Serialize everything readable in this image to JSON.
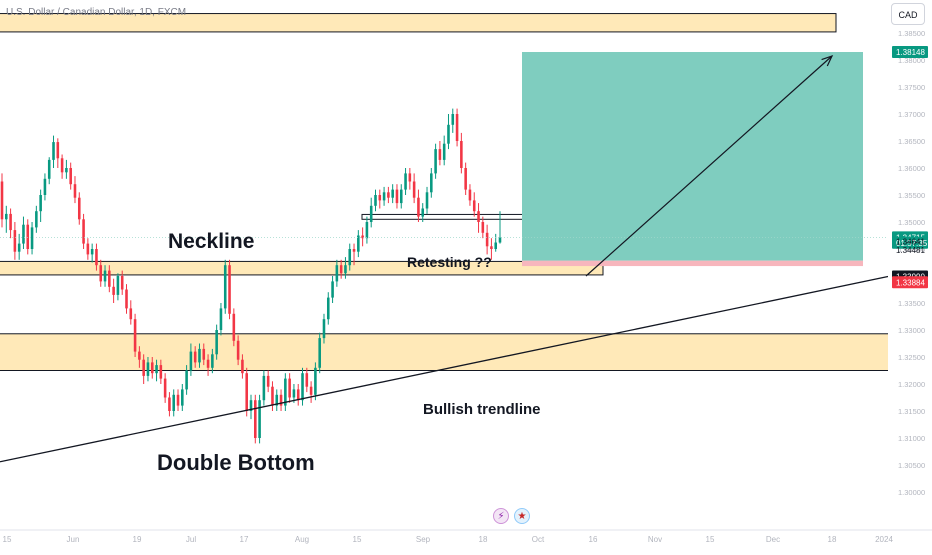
{
  "header": {
    "symbol_title": "U.S. Dollar / Canadian Dollar, 1D, FXCM",
    "currency_button": "CAD"
  },
  "annotations": {
    "neckline": "Neckline",
    "retesting": "Retesting ??",
    "bullish_trendline": "Bullish trendline",
    "double_bottom": "Double Bottom"
  },
  "icons": {
    "lightning": "lightning-icon",
    "flag": "us-flag-icon"
  },
  "colors": {
    "bull": "#089981",
    "bear": "#f23645",
    "zone_fill": "#ffe9b8",
    "target_zone": "#7fcdbf",
    "stop_zone": "#f7b6bd",
    "price_green": "#089981",
    "price_dark": "#131722",
    "price_red": "#f23645"
  },
  "chart_data": {
    "type": "candlestick",
    "title": "U.S. Dollar / Canadian Dollar, 1D, FXCM",
    "y_ticks": [
      1.385,
      1.38,
      1.375,
      1.37,
      1.365,
      1.36,
      1.355,
      1.35,
      1.345,
      1.34,
      1.335,
      1.33,
      1.325,
      1.32,
      1.315,
      1.31,
      1.305,
      1.3
    ],
    "y_tick_labels": [
      "1.38500",
      "1.38000",
      "1.37500",
      "1.37000",
      "1.36500",
      "1.36000",
      "1.35500",
      "1.35000",
      "1.34500",
      "1.34000",
      "1.33500",
      "1.33000",
      "1.32500",
      "1.32000",
      "1.31500",
      "1.31000",
      "1.30500",
      "1.30000"
    ],
    "x_tick_labels": [
      "15",
      "Jun",
      "19",
      "Jul",
      "17",
      "Aug",
      "15",
      "Sep",
      "18",
      "Oct",
      "16",
      "Nov",
      "15",
      "Dec",
      "18",
      "2024"
    ],
    "price_labels": [
      {
        "text": "1.38148",
        "value": 1.38148,
        "style": "green"
      },
      {
        "text": "1.34715",
        "value": 1.34715,
        "style": "green"
      },
      {
        "text": "01:57:35",
        "value": 1.34615,
        "style": "green"
      },
      {
        "text": "1.34641",
        "value": 1.34641,
        "style": "plain"
      },
      {
        "text": "1.34481",
        "value": 1.34481,
        "style": "plain"
      },
      {
        "text": "1.33990",
        "value": 1.3399,
        "style": "dark"
      },
      {
        "text": "1.33884",
        "value": 1.33884,
        "style": "red"
      }
    ],
    "zones": [
      {
        "name": "top-resistance-zone",
        "y": [
          1.3852,
          1.3886
        ]
      },
      {
        "name": "neckline-zone",
        "y": [
          1.3402,
          1.3427
        ]
      },
      {
        "name": "demand-zone",
        "y": [
          1.3225,
          1.3293
        ]
      },
      {
        "name": "retest-box",
        "y": [
          1.3505,
          1.3514
        ]
      }
    ],
    "position": {
      "entry": 1.34284,
      "target": 1.38148,
      "stop": 1.34184
    },
    "trendline": {
      "from": 1.3056,
      "to": 1.3399
    },
    "candles": [
      [
        1.3575,
        1.3505,
        1.359,
        1.349
      ],
      [
        1.3505,
        1.3515,
        1.353,
        1.348
      ],
      [
        1.3515,
        1.3485,
        1.3525,
        1.347
      ],
      [
        1.3485,
        1.3445,
        1.35,
        1.343
      ],
      [
        1.3445,
        1.346,
        1.3478,
        1.343
      ],
      [
        1.346,
        1.3495,
        1.351,
        1.345
      ],
      [
        1.3495,
        1.345,
        1.3505,
        1.344
      ],
      [
        1.345,
        1.349,
        1.35,
        1.344
      ],
      [
        1.349,
        1.352,
        1.353,
        1.348
      ],
      [
        1.352,
        1.355,
        1.356,
        1.35
      ],
      [
        1.355,
        1.358,
        1.359,
        1.354
      ],
      [
        1.358,
        1.3615,
        1.362,
        1.357
      ],
      [
        1.3615,
        1.3648,
        1.366,
        1.36
      ],
      [
        1.3648,
        1.3618,
        1.3655,
        1.36
      ],
      [
        1.3618,
        1.3592,
        1.3625,
        1.358
      ],
      [
        1.3592,
        1.36,
        1.3615,
        1.358
      ],
      [
        1.36,
        1.357,
        1.361,
        1.356
      ],
      [
        1.357,
        1.3545,
        1.3585,
        1.3535
      ],
      [
        1.3545,
        1.3505,
        1.3555,
        1.3495
      ],
      [
        1.3505,
        1.346,
        1.3515,
        1.345
      ],
      [
        1.346,
        1.344,
        1.347,
        1.343
      ],
      [
        1.344,
        1.345,
        1.346,
        1.3425
      ],
      [
        1.345,
        1.342,
        1.346,
        1.341
      ],
      [
        1.342,
        1.339,
        1.343,
        1.338
      ],
      [
        1.339,
        1.341,
        1.342,
        1.338
      ],
      [
        1.341,
        1.338,
        1.342,
        1.337
      ],
      [
        1.338,
        1.3365,
        1.3395,
        1.335
      ],
      [
        1.3365,
        1.34,
        1.3405,
        1.3355
      ],
      [
        1.34,
        1.3375,
        1.341,
        1.3365
      ],
      [
        1.3375,
        1.334,
        1.3385,
        1.333
      ],
      [
        1.334,
        1.332,
        1.3355,
        1.331
      ],
      [
        1.332,
        1.326,
        1.333,
        1.325
      ],
      [
        1.326,
        1.3245,
        1.327,
        1.323
      ],
      [
        1.3245,
        1.3215,
        1.3255,
        1.32
      ],
      [
        1.3215,
        1.324,
        1.325,
        1.3205
      ],
      [
        1.324,
        1.322,
        1.325,
        1.321
      ],
      [
        1.322,
        1.3235,
        1.3245,
        1.3205
      ],
      [
        1.3235,
        1.321,
        1.3245,
        1.32
      ],
      [
        1.321,
        1.3175,
        1.322,
        1.3165
      ],
      [
        1.3175,
        1.315,
        1.3185,
        1.314
      ],
      [
        1.315,
        1.318,
        1.319,
        1.314
      ],
      [
        1.318,
        1.316,
        1.319,
        1.315
      ],
      [
        1.316,
        1.319,
        1.32,
        1.315
      ],
      [
        1.319,
        1.3225,
        1.3235,
        1.318
      ],
      [
        1.3225,
        1.326,
        1.3275,
        1.3215
      ],
      [
        1.326,
        1.324,
        1.327,
        1.323
      ],
      [
        1.324,
        1.3265,
        1.3275,
        1.323
      ],
      [
        1.3265,
        1.3245,
        1.3275,
        1.3235
      ],
      [
        1.3245,
        1.323,
        1.3255,
        1.3215
      ],
      [
        1.323,
        1.3255,
        1.3265,
        1.322
      ],
      [
        1.3255,
        1.33,
        1.331,
        1.3245
      ],
      [
        1.33,
        1.334,
        1.335,
        1.329
      ],
      [
        1.334,
        1.342,
        1.343,
        1.333
      ],
      [
        1.342,
        1.333,
        1.343,
        1.332
      ],
      [
        1.333,
        1.328,
        1.334,
        1.327
      ],
      [
        1.328,
        1.3245,
        1.329,
        1.3235
      ],
      [
        1.3245,
        1.322,
        1.3255,
        1.321
      ],
      [
        1.322,
        1.315,
        1.323,
        1.314
      ],
      [
        1.315,
        1.317,
        1.318,
        1.3135
      ],
      [
        1.317,
        1.31,
        1.318,
        1.309
      ],
      [
        1.31,
        1.317,
        1.318,
        1.309
      ],
      [
        1.317,
        1.3215,
        1.3225,
        1.316
      ],
      [
        1.3215,
        1.3195,
        1.3225,
        1.3185
      ],
      [
        1.3195,
        1.316,
        1.3205,
        1.315
      ],
      [
        1.316,
        1.318,
        1.319,
        1.315
      ],
      [
        1.318,
        1.316,
        1.319,
        1.315
      ],
      [
        1.316,
        1.321,
        1.322,
        1.315
      ],
      [
        1.321,
        1.3175,
        1.322,
        1.3165
      ],
      [
        1.3175,
        1.319,
        1.32,
        1.3165
      ],
      [
        1.319,
        1.317,
        1.32,
        1.316
      ],
      [
        1.317,
        1.322,
        1.323,
        1.316
      ],
      [
        1.322,
        1.3195,
        1.323,
        1.3185
      ],
      [
        1.3195,
        1.318,
        1.3205,
        1.3165
      ],
      [
        1.318,
        1.323,
        1.324,
        1.317
      ],
      [
        1.323,
        1.3285,
        1.3295,
        1.322
      ],
      [
        1.3285,
        1.332,
        1.333,
        1.3275
      ],
      [
        1.332,
        1.336,
        1.337,
        1.331
      ],
      [
        1.336,
        1.339,
        1.34,
        1.335
      ],
      [
        1.339,
        1.342,
        1.343,
        1.338
      ],
      [
        1.342,
        1.3405,
        1.343,
        1.3395
      ],
      [
        1.3405,
        1.342,
        1.3435,
        1.3395
      ],
      [
        1.342,
        1.345,
        1.346,
        1.341
      ],
      [
        1.345,
        1.3445,
        1.346,
        1.342
      ],
      [
        1.3445,
        1.3475,
        1.3485,
        1.3435
      ],
      [
        1.3475,
        1.347,
        1.349,
        1.3455
      ],
      [
        1.347,
        1.35,
        1.351,
        1.346
      ],
      [
        1.35,
        1.353,
        1.3545,
        1.349
      ],
      [
        1.353,
        1.355,
        1.356,
        1.352
      ],
      [
        1.355,
        1.354,
        1.356,
        1.3525
      ],
      [
        1.354,
        1.3555,
        1.3565,
        1.353
      ],
      [
        1.3555,
        1.3545,
        1.3565,
        1.3535
      ],
      [
        1.3545,
        1.356,
        1.357,
        1.3535
      ],
      [
        1.356,
        1.3535,
        1.357,
        1.3525
      ],
      [
        1.3535,
        1.356,
        1.357,
        1.3525
      ],
      [
        1.356,
        1.359,
        1.36,
        1.355
      ],
      [
        1.359,
        1.3575,
        1.36,
        1.356
      ],
      [
        1.3575,
        1.3545,
        1.359,
        1.3535
      ],
      [
        1.3545,
        1.351,
        1.356,
        1.35
      ],
      [
        1.351,
        1.3525,
        1.3535,
        1.35
      ],
      [
        1.3525,
        1.3555,
        1.3565,
        1.3515
      ],
      [
        1.3555,
        1.359,
        1.36,
        1.3545
      ],
      [
        1.359,
        1.3635,
        1.3645,
        1.358
      ],
      [
        1.3635,
        1.3615,
        1.365,
        1.3605
      ],
      [
        1.3615,
        1.3645,
        1.366,
        1.3605
      ],
      [
        1.3645,
        1.368,
        1.37,
        1.3635
      ],
      [
        1.368,
        1.37,
        1.371,
        1.3665
      ],
      [
        1.37,
        1.365,
        1.371,
        1.364
      ],
      [
        1.365,
        1.36,
        1.3665,
        1.359
      ],
      [
        1.36,
        1.356,
        1.361,
        1.355
      ],
      [
        1.356,
        1.354,
        1.357,
        1.353
      ],
      [
        1.354,
        1.352,
        1.3555,
        1.351
      ],
      [
        1.352,
        1.35,
        1.3535,
        1.348
      ],
      [
        1.35,
        1.348,
        1.351,
        1.347
      ],
      [
        1.348,
        1.3455,
        1.3495,
        1.344
      ],
      [
        1.3455,
        1.345,
        1.347,
        1.343
      ],
      [
        1.345,
        1.3462,
        1.3478,
        1.3445
      ],
      [
        1.3462,
        1.3471,
        1.352,
        1.346
      ]
    ]
  }
}
